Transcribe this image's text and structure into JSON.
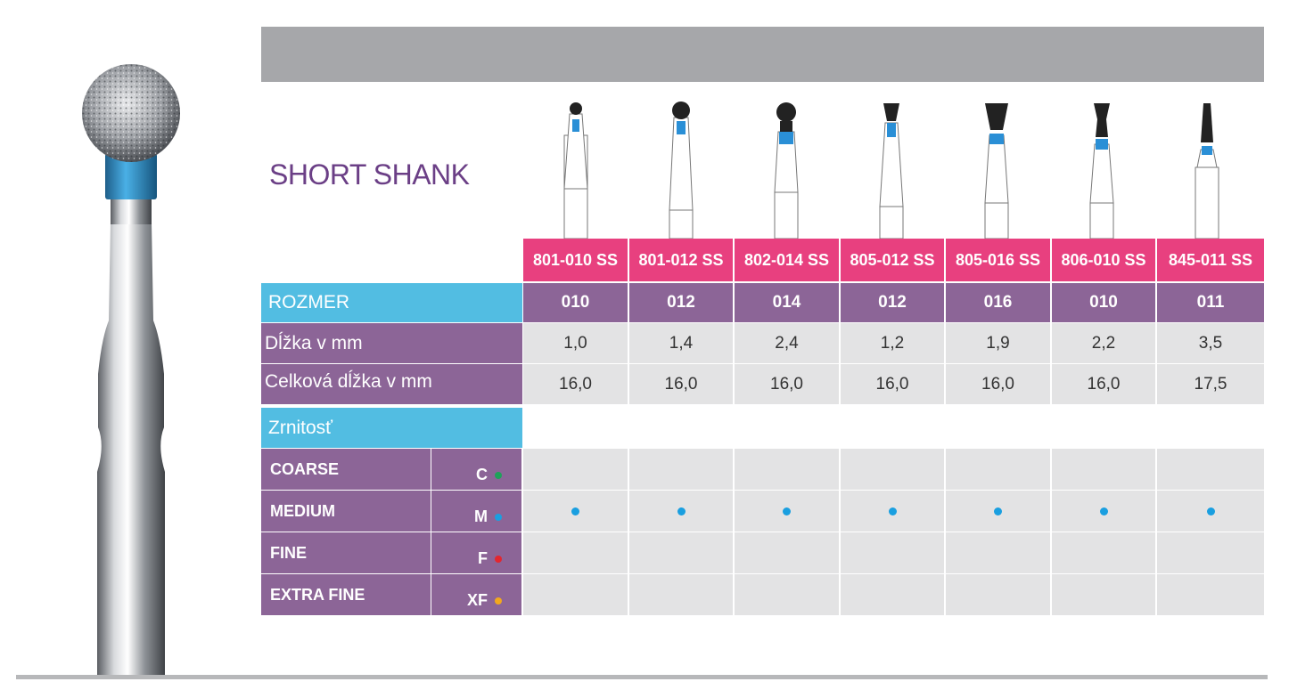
{
  "title": "SHORT SHANK",
  "colors": {
    "banner": "#a6a7aa",
    "title": "#6b3f86",
    "code_header": "#e8407f",
    "purple": "#8c6597",
    "cyan": "#52bde2",
    "gray_cell": "#e3e3e4",
    "medium_dot": "#1a9fe0"
  },
  "products": [
    {
      "code": "801-010 SS",
      "size": "010",
      "length": "1,0",
      "total": "16,0",
      "shape": "round-small"
    },
    {
      "code": "801-012 SS",
      "size": "012",
      "length": "1,4",
      "total": "16,0",
      "shape": "round-medium"
    },
    {
      "code": "802-014 SS",
      "size": "014",
      "length": "2,4",
      "total": "16,0",
      "shape": "round-collar"
    },
    {
      "code": "805-012 SS",
      "size": "012",
      "length": "1,2",
      "total": "16,0",
      "shape": "inverted-cone-small"
    },
    {
      "code": "805-016 SS",
      "size": "016",
      "length": "1,9",
      "total": "16,0",
      "shape": "inverted-cone-large"
    },
    {
      "code": "806-010 SS",
      "size": "010",
      "length": "2,2",
      "total": "16,0",
      "shape": "inverted-cone-collar"
    },
    {
      "code": "845-011 SS",
      "size": "011",
      "length": "3,5",
      "total": "17,5",
      "shape": "tapered"
    }
  ],
  "labels": {
    "size": "ROZMER",
    "length": "Dĺžka v mm",
    "total": "Celková dĺžka v mm",
    "grit": "Zrnitosť"
  },
  "grits": [
    {
      "name": "COARSE",
      "code": "C",
      "color": "#1fa25a",
      "marks": [
        false,
        false,
        false,
        false,
        false,
        false,
        false
      ]
    },
    {
      "name": "MEDIUM",
      "code": "M",
      "color": "#1a9fe0",
      "marks": [
        true,
        true,
        true,
        true,
        true,
        true,
        true
      ]
    },
    {
      "name": "FINE",
      "code": "F",
      "color": "#e3262f",
      "marks": [
        false,
        false,
        false,
        false,
        false,
        false,
        false
      ]
    },
    {
      "name": "EXTRA FINE",
      "code": "XF",
      "color": "#f2a81d",
      "marks": [
        false,
        false,
        false,
        false,
        false,
        false,
        false
      ]
    }
  ]
}
